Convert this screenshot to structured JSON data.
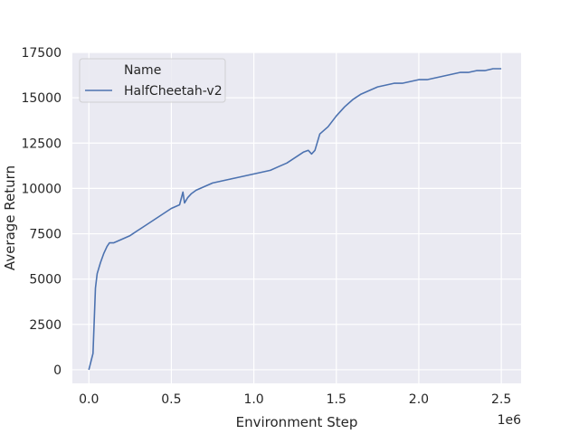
{
  "chart_data": {
    "type": "line",
    "xlabel": "Environment Step",
    "ylabel": "Average Return",
    "x_offset_text": "1e6",
    "xlim": [
      -100000,
      2620000
    ],
    "ylim": [
      -750,
      17500
    ],
    "xticks": [
      0,
      500000,
      1000000,
      1500000,
      2000000,
      2500000
    ],
    "xtick_labels": [
      "0.0",
      "0.5",
      "1.0",
      "1.5",
      "2.0",
      "2.5"
    ],
    "yticks": [
      0,
      2500,
      5000,
      7500,
      10000,
      12500,
      15000,
      17500
    ],
    "ytick_labels": [
      "0",
      "2500",
      "5000",
      "7500",
      "10000",
      "12500",
      "15000",
      "17500"
    ],
    "grid": true,
    "legend": {
      "title": "Name",
      "placement": "top-left"
    },
    "series": [
      {
        "name": "HalfCheetah-v2",
        "color": "#4c72b0",
        "x": [
          0,
          25000,
          40000,
          50000,
          70000,
          90000,
          110000,
          125000,
          150000,
          175000,
          200000,
          250000,
          300000,
          350000,
          400000,
          450000,
          500000,
          550000,
          570000,
          580000,
          600000,
          620000,
          650000,
          700000,
          750000,
          800000,
          850000,
          900000,
          950000,
          1000000,
          1050000,
          1100000,
          1150000,
          1200000,
          1250000,
          1300000,
          1330000,
          1350000,
          1370000,
          1400000,
          1450000,
          1500000,
          1550000,
          1600000,
          1650000,
          1700000,
          1750000,
          1800000,
          1850000,
          1900000,
          1950000,
          2000000,
          2050000,
          2100000,
          2150000,
          2200000,
          2250000,
          2300000,
          2350000,
          2400000,
          2450000,
          2500000
        ],
        "y": [
          0,
          900,
          4500,
          5300,
          5900,
          6400,
          6800,
          7000,
          7000,
          7100,
          7200,
          7400,
          7700,
          8000,
          8300,
          8600,
          8900,
          9100,
          9800,
          9200,
          9500,
          9700,
          9900,
          10100,
          10300,
          10400,
          10500,
          10600,
          10700,
          10800,
          10900,
          11000,
          11200,
          11400,
          11700,
          12000,
          12100,
          11900,
          12100,
          13000,
          13400,
          14000,
          14500,
          14900,
          15200,
          15400,
          15600,
          15700,
          15800,
          15800,
          15900,
          16000,
          16000,
          16100,
          16200,
          16300,
          16400,
          16400,
          16500,
          16500,
          16600,
          16600
        ]
      }
    ]
  }
}
